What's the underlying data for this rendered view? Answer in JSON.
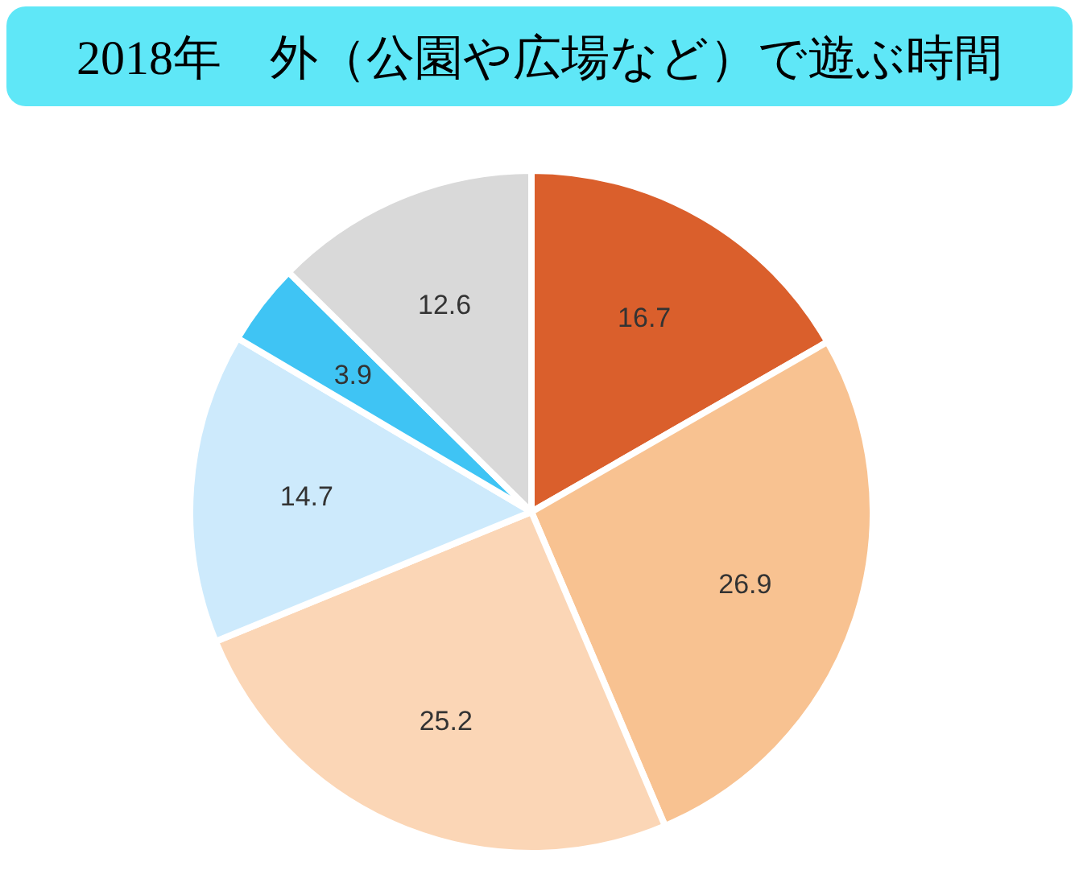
{
  "chart_data": {
    "type": "pie",
    "title": "2018年　外（公園や広場など）で遊ぶ時間",
    "categories": [
      null,
      null,
      null,
      null,
      null,
      null
    ],
    "values": [
      16.7,
      26.9,
      25.2,
      14.7,
      3.9,
      12.6
    ],
    "colors": [
      "#da5f2c",
      "#f8c291",
      "#fbd6b6",
      "#cdeafc",
      "#3fc4f4",
      "#d9d9d9"
    ],
    "data_labels": true
  }
}
